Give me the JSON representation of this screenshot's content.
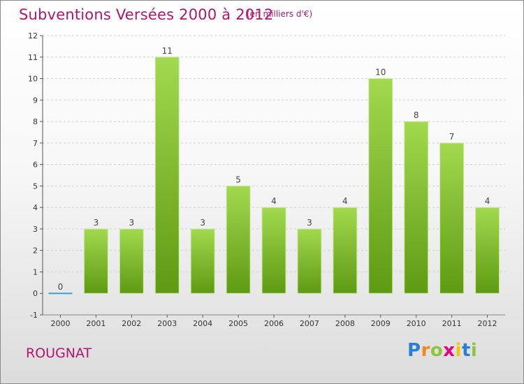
{
  "header": {
    "title": "Subventions Versées 2000 à 2012",
    "subtitle": "(en milliers d'€)"
  },
  "footer": {
    "place": "ROUGNAT",
    "logo_letters": [
      "P",
      "r",
      "o",
      "x",
      "i",
      "t",
      "i"
    ],
    "logo_colors": [
      "#2a7fd4",
      "#f08a1c",
      "#8cc63f",
      "#e5007e",
      "#f2c500",
      "#2a7fd4",
      "#8cc63f"
    ]
  },
  "colors": {
    "bar_top": "#a2d94e",
    "bar_bottom": "#5e9a12",
    "grid": "#cfcfcf",
    "zero_line": "#3aa0d8"
  },
  "chart_data": {
    "type": "bar",
    "title": "Subventions Versées 2000 à 2012",
    "subtitle": "(en milliers d'€)",
    "categories": [
      "2000",
      "2001",
      "2002",
      "2003",
      "2004",
      "2005",
      "2006",
      "2007",
      "2008",
      "2009",
      "2010",
      "2011",
      "2012"
    ],
    "values": [
      0,
      3,
      3,
      11,
      3,
      5,
      4,
      3,
      4,
      10,
      8,
      7,
      4
    ],
    "data_labels": [
      "0",
      "3",
      "3",
      "11",
      "3",
      "5",
      "4",
      "3",
      "4",
      "10",
      "8",
      "7",
      "4"
    ],
    "y_ticks": [
      -1,
      0,
      1,
      2,
      3,
      4,
      5,
      6,
      7,
      8,
      9,
      10,
      11,
      12
    ],
    "ylim": [
      -1,
      12
    ],
    "grid": "horizontal dashed",
    "legend": "none"
  }
}
